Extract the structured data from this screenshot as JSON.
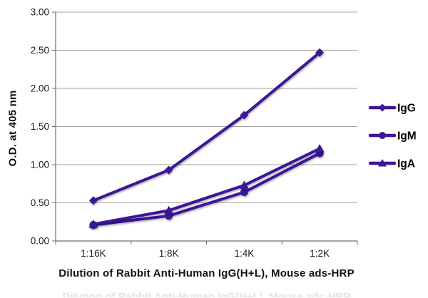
{
  "chart_data": {
    "type": "line",
    "xlabel": "Dilution of Rabbit Anti-Human IgG(H+L), Mouse ads-HRP",
    "ylabel": "O.D. at 405 nm",
    "categories": [
      "1:16K",
      "1:8K",
      "1:4K",
      "1:2K"
    ],
    "y_ticks": [
      "0.00",
      "0.50",
      "1.00",
      "1.50",
      "2.00",
      "2.50",
      "3.00"
    ],
    "ylim": [
      0,
      3
    ],
    "grid": true,
    "legend_position": "right",
    "series": [
      {
        "name": "IgG",
        "marker": "diamond",
        "color": "#3b1697",
        "values": [
          0.53,
          0.93,
          1.65,
          2.47
        ]
      },
      {
        "name": "IgM",
        "marker": "circle",
        "color": "#3b1697",
        "values": [
          0.21,
          0.33,
          0.64,
          1.15
        ]
      },
      {
        "name": "IgA",
        "marker": "triangle",
        "color": "#3b1697",
        "values": [
          0.22,
          0.4,
          0.73,
          1.21
        ]
      }
    ],
    "colors": {
      "line": "#3b1697",
      "gridline": "#a3a3a3",
      "axis": "#6e6e6e",
      "tick_text": "#1c1c1c"
    }
  }
}
